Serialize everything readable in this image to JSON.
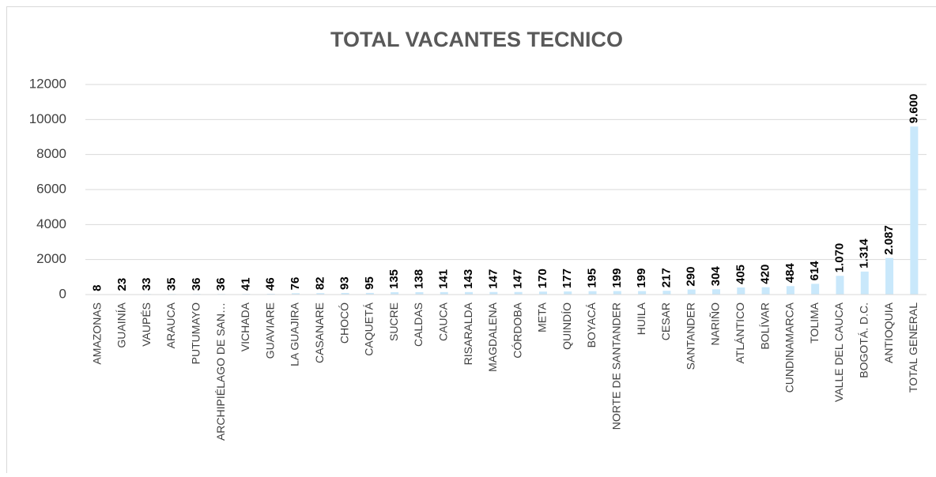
{
  "chart_data": {
    "type": "bar",
    "title": "TOTAL VACANTES TECNICO",
    "categories": [
      "AMAZONAS",
      "GUAINÍA",
      "VAUPÉS",
      "ARAUCA",
      "PUTUMAYO",
      "ARCHIPIÉLAGO DE SAN…",
      "VICHADA",
      "GUAVIARE",
      "LA GUAJIRA",
      "CASANARE",
      "CHOCÓ",
      "CAQUETÁ",
      "SUCRE",
      "CALDAS",
      "CAUCA",
      "RISARALDA",
      "MAGDALENA",
      "CÓRDOBA",
      "META",
      "QUINDÍO",
      "BOYACÁ",
      "NORTE DE SANTANDER",
      "HUILA",
      "CESAR",
      "SANTANDER",
      "NARIÑO",
      "ATLÁNTICO",
      "BOLÍVAR",
      "CUNDINAMARCA",
      "TOLIMA",
      "VALLE DEL CAUCA",
      "BOGOTÁ. D.C.",
      "ANTIOQUIA",
      "TOTAL GENERAL"
    ],
    "values": [
      8,
      23,
      33,
      35,
      36,
      36,
      41,
      46,
      76,
      82,
      93,
      95,
      135,
      138,
      141,
      143,
      147,
      147,
      170,
      177,
      195,
      199,
      199,
      217,
      290,
      304,
      405,
      420,
      484,
      614,
      1070,
      1314,
      2087,
      9600
    ],
    "value_labels": [
      "8",
      "23",
      "33",
      "35",
      "36",
      "36",
      "41",
      "46",
      "76",
      "82",
      "93",
      "95",
      "135",
      "138",
      "141",
      "143",
      "147",
      "147",
      "170",
      "177",
      "195",
      "199",
      "199",
      "217",
      "290",
      "304",
      "405",
      "420",
      "484",
      "614",
      "1.070",
      "1.314",
      "2.087",
      "9.600"
    ],
    "color": "#c9e8fb",
    "ylim": [
      0,
      12000
    ],
    "yticks": [
      0,
      2000,
      4000,
      6000,
      8000,
      10000,
      12000
    ],
    "grid": true
  }
}
